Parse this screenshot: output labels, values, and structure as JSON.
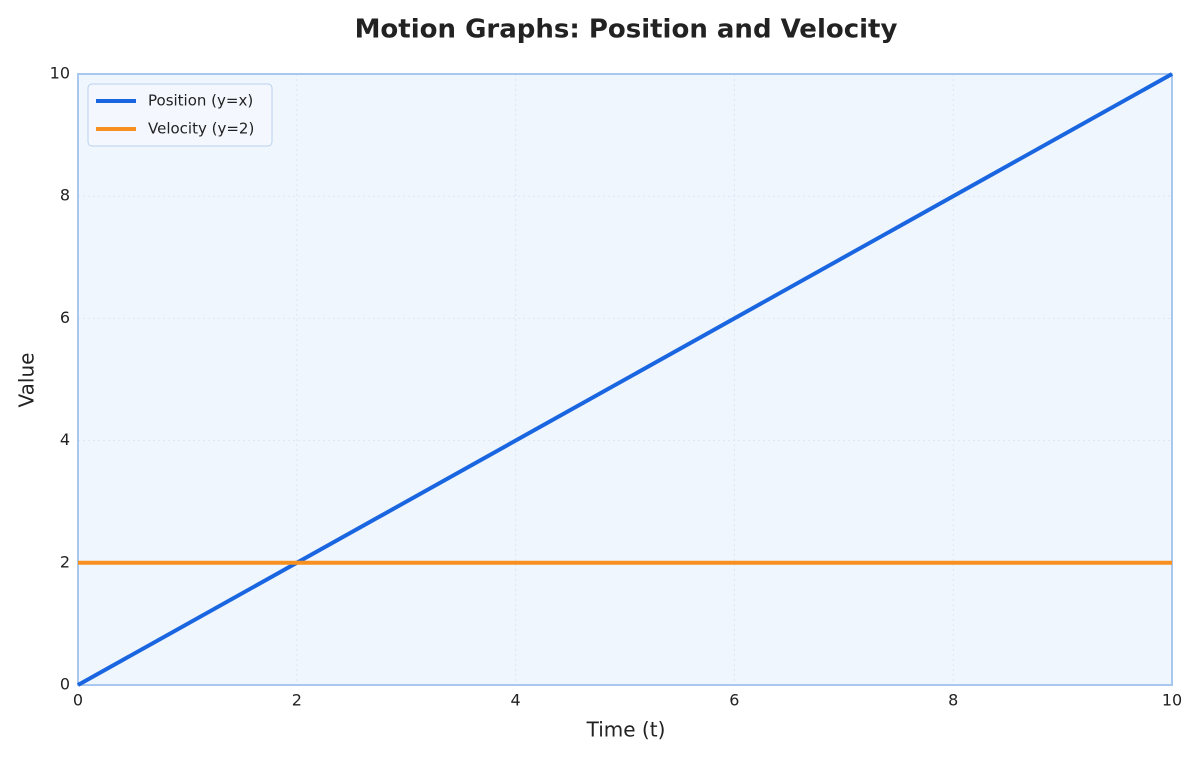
{
  "chart_data": {
    "type": "line",
    "title": "Motion Graphs: Position and Velocity",
    "x_label": "Time (t)",
    "y_label": "Value",
    "x": [
      0,
      10
    ],
    "series": [
      {
        "name": "Position (y=x)",
        "color": "#1a66e0",
        "values": [
          0,
          10
        ]
      },
      {
        "name": "Velocity (y=2)",
        "color": "#f7901e",
        "values": [
          2,
          2
        ]
      }
    ],
    "xlim": [
      0,
      10
    ],
    "ylim": [
      0,
      10
    ],
    "xticks": [
      0,
      2,
      4,
      6,
      8,
      10
    ],
    "yticks": [
      0,
      2,
      4,
      6,
      8,
      10
    ],
    "grid": true,
    "legend": "upper left"
  }
}
